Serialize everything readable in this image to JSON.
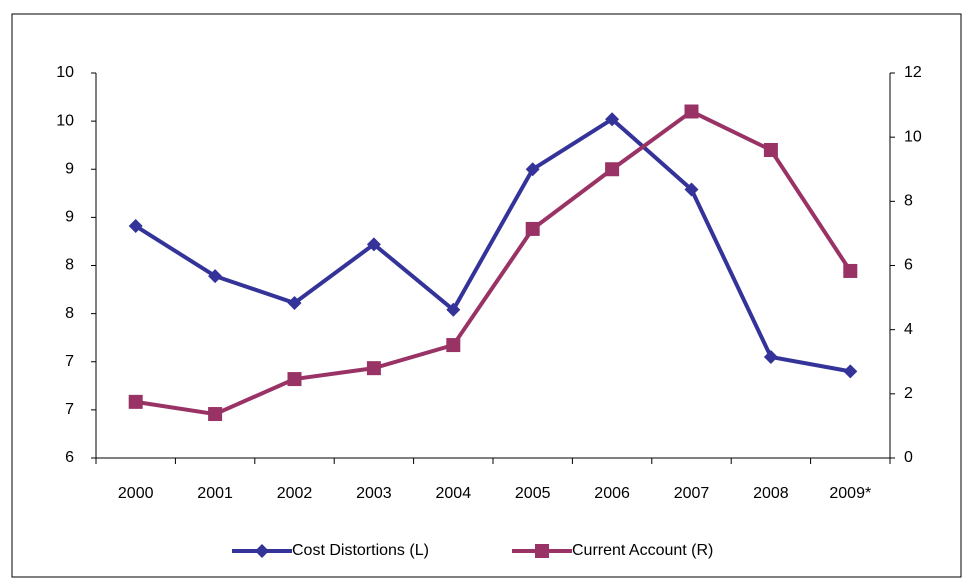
{
  "chart_data": {
    "type": "line",
    "categories": [
      "2000",
      "2001",
      "2002",
      "2003",
      "2004",
      "2005",
      "2006",
      "2007",
      "2008",
      "2009*"
    ],
    "series": [
      {
        "name": "Cost Distortions (L)",
        "color": "#333399",
        "marker": "diamond",
        "values": [
          8.41,
          7.89,
          7.61,
          8.22,
          7.54,
          9.0,
          9.52,
          8.79,
          7.05,
          6.9
        ]
      },
      {
        "name": "Current Account (R)",
        "color": "#993366",
        "marker": "square",
        "axis": "y2",
        "values": [
          1.75,
          1.37,
          2.46,
          2.8,
          3.52,
          7.14,
          9.0,
          10.8,
          9.6,
          5.83
        ]
      }
    ],
    "ylim": [
      6,
      10
    ],
    "yticks": [
      6,
      {
        "value": 6.5,
        "label": "7"
      },
      7,
      {
        "value": 7.5,
        "label": "8"
      },
      8,
      {
        "value": 8.5,
        "label": "9"
      },
      9,
      {
        "value": 9.5,
        "label": "10"
      },
      10
    ],
    "y2lim": [
      0,
      12
    ],
    "y2ticks": [
      0,
      2,
      4,
      6,
      8,
      10,
      12
    ],
    "legend": "bottom"
  }
}
